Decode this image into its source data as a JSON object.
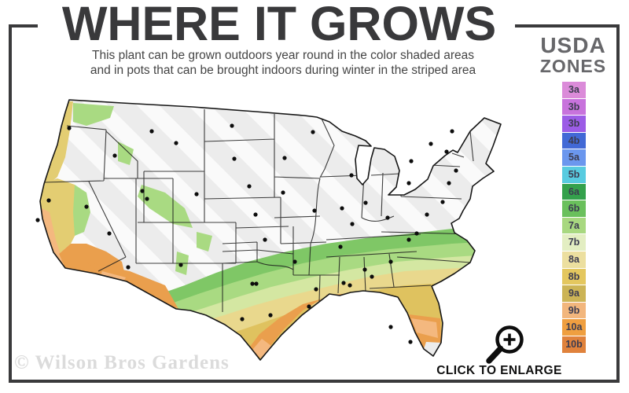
{
  "header": {
    "title": "WHERE IT GROWS",
    "subtitle_line1": "This plant can be grown outdoors year round in the color shaded areas",
    "subtitle_line2": "and in pots that can be brought indoors during winter in the striped area"
  },
  "legend": {
    "title_line1": "USDA",
    "title_line2": "ZONES",
    "zones": [
      {
        "label": "3a",
        "color": "#db8bd9"
      },
      {
        "label": "3b",
        "color": "#c873dc"
      },
      {
        "label": "3b",
        "color": "#9c5ce6"
      },
      {
        "label": "4b",
        "color": "#4269d6"
      },
      {
        "label": "5a",
        "color": "#6b97ee"
      },
      {
        "label": "5b",
        "color": "#58cbe0"
      },
      {
        "label": "6a",
        "color": "#34a14c"
      },
      {
        "label": "6b",
        "color": "#6ac05c"
      },
      {
        "label": "7a",
        "color": "#a8d880"
      },
      {
        "label": "7b",
        "color": "#e3eec2"
      },
      {
        "label": "8a",
        "color": "#ecdf9f"
      },
      {
        "label": "8b",
        "color": "#e4c75f"
      },
      {
        "label": "9a",
        "color": "#ccb456"
      },
      {
        "label": "9b",
        "color": "#f2b67d"
      },
      {
        "label": "10a",
        "color": "#ef9f40"
      },
      {
        "label": "10b",
        "color": "#e0823c"
      }
    ]
  },
  "map": {
    "palette": {
      "base_gray": "#ececec",
      "stripe_white": "#fbfbfb",
      "green": "#7fc766",
      "green_light": "#a9da82",
      "green_pale": "#d4e7a2",
      "khaki": "#e9d88d",
      "gold": "#dfc25f",
      "orange": "#ea9f4d",
      "peach": "#f4b87f",
      "yellow_west": "#e3cd72",
      "border": "#1c1c1c"
    },
    "city_dots": [
      [
        73,
        58
      ],
      [
        178,
        62
      ],
      [
        209,
        77
      ],
      [
        131,
        93
      ],
      [
        166,
        138
      ],
      [
        95,
        158
      ],
      [
        124,
        192
      ],
      [
        172,
        148
      ],
      [
        47,
        150
      ],
      [
        33,
        175
      ],
      [
        235,
        142
      ],
      [
        215,
        232
      ],
      [
        148,
        235
      ],
      [
        280,
        55
      ],
      [
        283,
        97
      ],
      [
        383,
        63
      ],
      [
        347,
        96
      ],
      [
        302,
        132
      ],
      [
        345,
        140
      ],
      [
        310,
        168
      ],
      [
        385,
        163
      ],
      [
        420,
        160
      ],
      [
        432,
        118
      ],
      [
        450,
        153
      ],
      [
        322,
        200
      ],
      [
        360,
        228
      ],
      [
        306,
        256
      ],
      [
        311,
        256
      ],
      [
        293,
        301
      ],
      [
        329,
        296
      ],
      [
        433,
        180
      ],
      [
        418,
        209
      ],
      [
        422,
        255
      ],
      [
        430,
        258
      ],
      [
        387,
        263
      ],
      [
        378,
        285
      ],
      [
        505,
        200
      ],
      [
        482,
        228
      ],
      [
        449,
        238
      ],
      [
        458,
        247
      ],
      [
        482,
        311
      ],
      [
        507,
        330
      ],
      [
        508,
        100
      ],
      [
        533,
        78
      ],
      [
        553,
        88
      ],
      [
        560,
        62
      ],
      [
        565,
        112
      ],
      [
        556,
        128
      ],
      [
        548,
        152
      ],
      [
        505,
        128
      ],
      [
        528,
        168
      ],
      [
        515,
        192
      ],
      [
        478,
        172
      ]
    ]
  },
  "footer": {
    "watermark": "© Wilson Bros Gardens",
    "enlarge_label": "CLICK TO ENLARGE"
  }
}
